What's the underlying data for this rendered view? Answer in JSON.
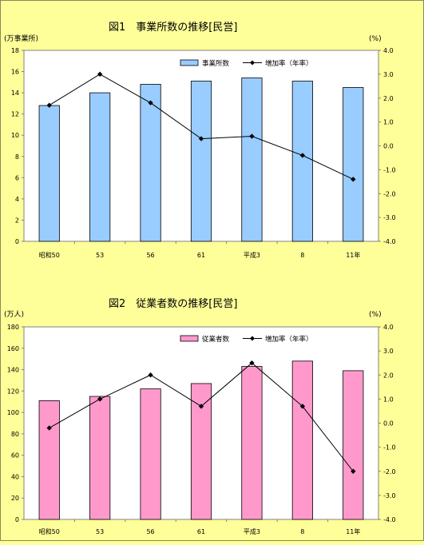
{
  "chart_data": [
    {
      "type": "bar",
      "title": "図1　事業所数の推移[民営]",
      "categories": [
        "昭和50",
        "53",
        "56",
        "61",
        "平成3",
        "8",
        "11年"
      ],
      "left_unit": "(万事業所)",
      "right_unit": "(%)",
      "ylim": [
        0,
        18
      ],
      "y_ticks": [
        0,
        2,
        4,
        6,
        8,
        10,
        12,
        14,
        16,
        18
      ],
      "y2lim": [
        -4.0,
        4.0
      ],
      "y2_ticks": [
        "4.0",
        "3.0",
        "2.0",
        "1.0",
        "0.0",
        "-1.0",
        "-2.0",
        "-3.0",
        "-4.0"
      ],
      "bar_color": "#99CCFF",
      "series": [
        {
          "name": "事業所数",
          "kind": "bar",
          "axis": "left",
          "values": [
            12.8,
            14.0,
            14.8,
            15.1,
            15.4,
            15.1,
            14.5
          ]
        },
        {
          "name": "増加率（年率）",
          "kind": "line",
          "axis": "right",
          "values": [
            1.7,
            3.0,
            1.8,
            0.3,
            0.4,
            -0.4,
            -1.4
          ]
        }
      ],
      "legend": "top-right",
      "grid": false
    },
    {
      "type": "bar",
      "title": "図2　従業者数の推移[民営]",
      "categories": [
        "昭和50",
        "53",
        "56",
        "61",
        "平成3",
        "8",
        "11年"
      ],
      "left_unit": "(万人)",
      "right_unit": "(%)",
      "ylim": [
        0,
        180
      ],
      "y_ticks": [
        0,
        20,
        40,
        60,
        80,
        100,
        120,
        140,
        160,
        180
      ],
      "y2lim": [
        -4.0,
        4.0
      ],
      "y2_ticks": [
        "4.0",
        "3.0",
        "2.0",
        "1.0",
        "0.0",
        "-1.0",
        "-2.0",
        "-3.0",
        "-4.0"
      ],
      "bar_color": "#FF99CC",
      "series": [
        {
          "name": "従業者数",
          "kind": "bar",
          "axis": "left",
          "values": [
            111,
            115,
            122,
            127,
            143,
            148,
            139
          ]
        },
        {
          "name": "増加率（年率）",
          "kind": "line",
          "axis": "right",
          "values": [
            -0.2,
            1.0,
            2.0,
            0.7,
            2.5,
            0.7,
            -2.0
          ]
        }
      ],
      "legend": "top-right",
      "grid": false
    }
  ]
}
